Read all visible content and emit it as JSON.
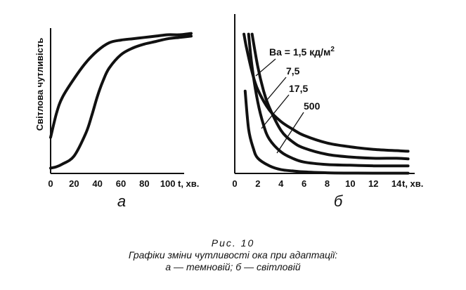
{
  "caption": {
    "figure_label": "Рис. 10",
    "title": "Графіки зміни чутливості ока при адаптації:",
    "legend_line": "а — темновій; б — світловій"
  },
  "chart_data": [
    {
      "type": "line",
      "panel_label": "а",
      "ylabel": "Світлова чутливість",
      "xlabel": "t, хв.",
      "x_ticks": [
        "0",
        "20",
        "40",
        "60",
        "80",
        "100"
      ],
      "xlim": [
        0,
        120
      ],
      "series": [
        {
          "x": [
            0,
            5,
            10,
            20,
            30,
            40,
            50,
            60,
            70,
            80,
            90,
            100,
            110,
            120
          ],
          "y": [
            0.27,
            0.45,
            0.57,
            0.71,
            0.83,
            0.92,
            0.98,
            1.0,
            1.01,
            1.02,
            1.03,
            1.04,
            1.04,
            1.05
          ]
        },
        {
          "x": [
            0,
            5,
            10,
            20,
            30,
            35,
            40,
            45,
            50,
            60,
            70,
            80,
            90,
            100,
            110,
            120
          ],
          "y": [
            0.04,
            0.05,
            0.07,
            0.13,
            0.3,
            0.43,
            0.58,
            0.7,
            0.79,
            0.89,
            0.94,
            0.97,
            0.99,
            1.01,
            1.02,
            1.03
          ]
        }
      ]
    },
    {
      "type": "line",
      "panel_label": "б",
      "xlabel": "t, хв.",
      "x_ticks": [
        "0",
        "2",
        "4",
        "6",
        "8",
        "10",
        "12",
        "14"
      ],
      "xlim": [
        0,
        16
      ],
      "series": [
        {
          "name": "Ba = 1,5 кд/м",
          "name_sup": "2",
          "x": [
            0.8,
            1.0,
            1.5,
            2,
            3,
            4,
            5,
            6,
            8,
            10,
            12,
            14,
            15
          ],
          "y": [
            1.1,
            1.0,
            0.8,
            0.66,
            0.5,
            0.41,
            0.35,
            0.3,
            0.24,
            0.21,
            0.19,
            0.18,
            0.175
          ]
        },
        {
          "name": "7,5",
          "x": [
            1.5,
            2,
            2.5,
            3,
            4,
            5,
            6,
            8,
            10,
            12,
            14,
            15
          ],
          "y": [
            1.1,
            0.84,
            0.65,
            0.52,
            0.34,
            0.25,
            0.2,
            0.15,
            0.13,
            0.12,
            0.12,
            0.115
          ]
        },
        {
          "name": "17,5",
          "x": [
            1.2,
            1.5,
            2,
            2.5,
            3,
            4,
            5,
            6,
            8,
            10,
            12,
            14,
            15
          ],
          "y": [
            1.1,
            0.84,
            0.56,
            0.38,
            0.27,
            0.17,
            0.12,
            0.09,
            0.07,
            0.065,
            0.06,
            0.06,
            0.06
          ]
        },
        {
          "name": "500",
          "x": [
            0.9,
            1.2,
            1.6,
            2,
            3,
            4,
            5,
            6,
            8,
            10,
            12,
            14,
            15
          ],
          "y": [
            0.65,
            0.35,
            0.2,
            0.12,
            0.06,
            0.03,
            0.02,
            0.012,
            0.005,
            0.003,
            0.002,
            0.002,
            0.002
          ]
        }
      ]
    }
  ]
}
